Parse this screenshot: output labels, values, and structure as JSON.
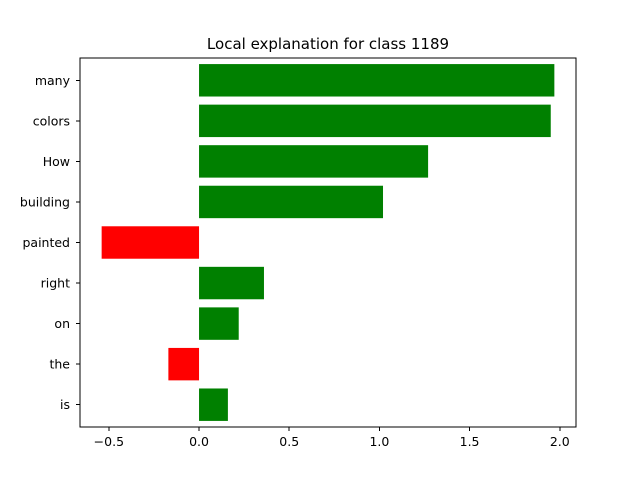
{
  "chart_data": {
    "type": "bar",
    "orientation": "horizontal",
    "title": "Local explanation for class 1189",
    "xlabel": "",
    "ylabel": "",
    "categories": [
      "many",
      "colors",
      "How",
      "building",
      "painted",
      "right",
      "on",
      "the",
      "is"
    ],
    "values": [
      1.97,
      1.95,
      1.27,
      1.02,
      -0.54,
      0.36,
      0.22,
      -0.17,
      0.16
    ],
    "xlim": [
      -0.66,
      2.09
    ],
    "xticks": [
      -0.5,
      0.0,
      0.5,
      1.0,
      1.5,
      2.0
    ],
    "xtick_labels": [
      "−0.5",
      "0.0",
      "0.5",
      "1.0",
      "1.5",
      "2.0"
    ],
    "positive_color": "#008000",
    "negative_color": "#ff0000",
    "grid": false,
    "legend": "none"
  }
}
